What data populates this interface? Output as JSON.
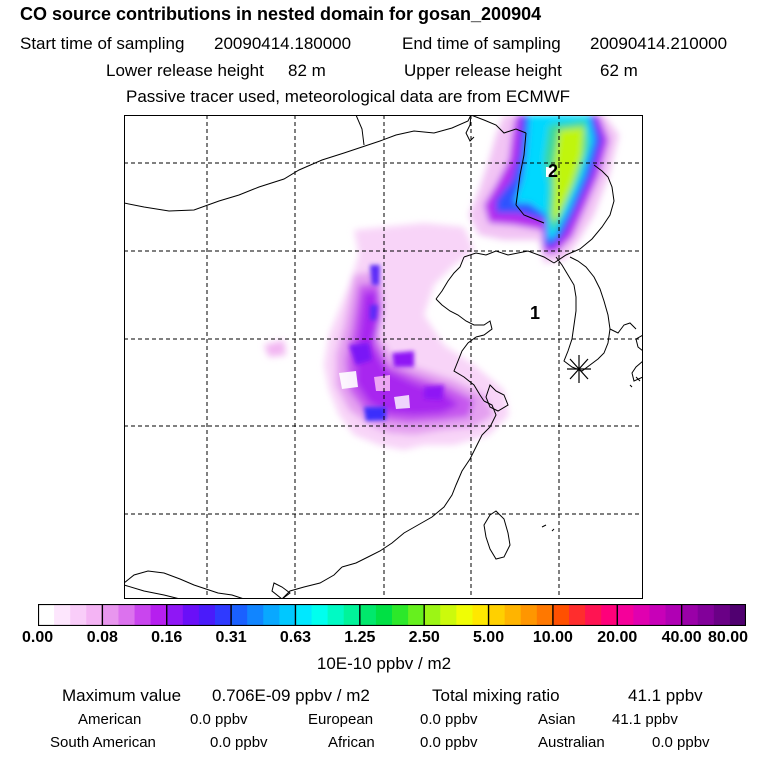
{
  "header": {
    "title": "CO  source contributions in nested domain for gosan_200904",
    "start_label": "Start time of sampling",
    "start_value": "20090414.180000",
    "end_label": "End time of sampling",
    "end_value": "20090414.210000",
    "lower_label": "Lower release height",
    "lower_value": "82 m",
    "upper_label": "Upper release height",
    "upper_value": "62 m",
    "tracer_note": "Passive tracer used, meteorological data are from ECMWF"
  },
  "map": {
    "marker_1": "1",
    "marker_2": "2",
    "receptor_symbol": "station-star-icon"
  },
  "colorbar": {
    "tick_labels": [
      "0.00",
      "0.08",
      "0.16",
      "0.31",
      "0.63",
      "1.25",
      "2.50",
      "5.00",
      "10.00",
      "20.00",
      "40.00",
      "80.00"
    ],
    "colors": [
      "#ffffff",
      "#fde6fd",
      "#f9cdf9",
      "#f4b4f4",
      "#e896ee",
      "#dc72ee",
      "#c945ee",
      "#b61fef",
      "#8f17f5",
      "#6a0ff8",
      "#4a1bfa",
      "#2f3aff",
      "#1a60ff",
      "#1185ff",
      "#09a8ff",
      "#00c8ff",
      "#00e8ff",
      "#00ffee",
      "#00fac4",
      "#00f49a",
      "#00e86c",
      "#00e044",
      "#2ce82a",
      "#66f01e",
      "#9cf515",
      "#ccfa0c",
      "#f0fd05",
      "#ffe800",
      "#ffd000",
      "#ffb400",
      "#ff9600",
      "#ff7800",
      "#ff5000",
      "#ff2d2d",
      "#ff1452",
      "#ff007a",
      "#f5009a",
      "#e000b0",
      "#c800b8",
      "#b000b4",
      "#9a00a8",
      "#82009a",
      "#6a0086",
      "#500070"
    ],
    "units": "10E-10 ppbv / m2"
  },
  "stats": {
    "max_label": "Maximum value",
    "max_value": "0.706E-09 ppbv / m2",
    "total_label": "Total mixing ratio",
    "total_value": "41.1 ppbv",
    "american_label": "American",
    "american_value": "0.0 ppbv",
    "european_label": "European",
    "european_value": "0.0 ppbv",
    "asian_label": "Asian",
    "asian_value": "41.1 ppbv",
    "south_american_label": "South American",
    "south_american_value": "0.0 ppbv",
    "african_label": "African",
    "african_value": "0.0 ppbv",
    "australian_label": "Australian",
    "australian_value": "0.0 ppbv"
  }
}
